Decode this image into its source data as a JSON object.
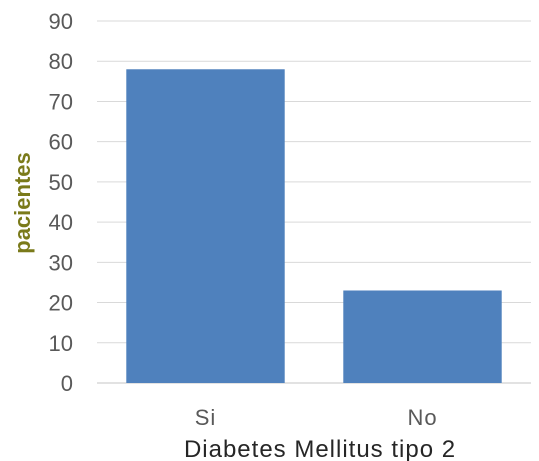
{
  "chart_data": {
    "type": "bar",
    "categories": [
      "Si",
      "No"
    ],
    "values": [
      78,
      23
    ],
    "title": "",
    "xlabel": "Diabetes Mellitus tipo 2",
    "ylabel": "pacientes",
    "ylim": [
      0,
      90
    ],
    "yticks": [
      "0",
      "10",
      "20",
      "30",
      "40",
      "50",
      "60",
      "70",
      "80",
      "90"
    ],
    "grid": true,
    "legend": "none",
    "colors": {
      "bar": "#4f81bd",
      "grid": "#d9d9d9",
      "ylabel": "#7a7a1a"
    }
  }
}
